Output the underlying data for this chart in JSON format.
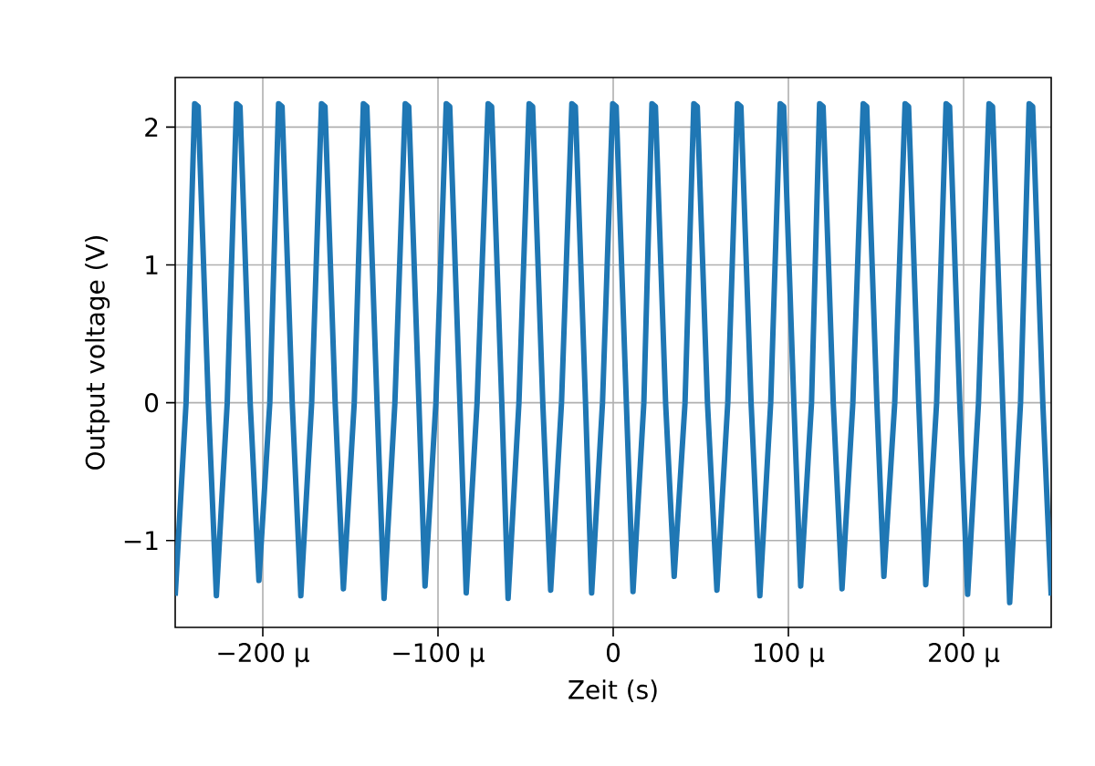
{
  "chart_data": {
    "type": "line",
    "xlabel": "Zeit (s)",
    "ylabel": "Output voltage (V)",
    "xlim": [
      -250,
      250
    ],
    "ylim": [
      -1.63,
      2.36
    ],
    "xticks": [
      {
        "value": -200,
        "label": "−200 µ"
      },
      {
        "value": -100,
        "label": "−100 µ"
      },
      0,
      {
        "value": 100,
        "label": "100 µ"
      },
      {
        "value": 200,
        "label": "200 µ"
      }
    ],
    "yticks": [
      {
        "value": -1,
        "label": "−1"
      },
      0,
      1,
      2
    ],
    "grid": true,
    "series": [
      {
        "color": "#1f77b4",
        "x": [
          -250,
          -243.8,
          -238.9,
          -236.9,
          -231.1,
          -226.5,
          -220.3,
          -215.0,
          -213.0,
          -207.2,
          -202.2,
          -196.0,
          -191.0,
          -189.0,
          -183.2,
          -178.3,
          -172.1,
          -166.5,
          -164.5,
          -158.7,
          -154.0,
          -147.8,
          -142.6,
          -140.6,
          -134.8,
          -130.8,
          -124.6,
          -118.7,
          -116.7,
          -110.9,
          -107.4,
          -101.2,
          -95.3,
          -93.3,
          -87.5,
          -83.9,
          -77.7,
          -71.4,
          -69.4,
          -63.6,
          -60.0,
          -53.8,
          -48.0,
          -46.0,
          -40.2,
          -35.7,
          -29.5,
          -23.6,
          -21.6,
          -15.8,
          -12.3,
          -6.1,
          -0.3,
          1.7,
          7.5,
          11.3,
          17.5,
          22.1,
          24.1,
          29.9,
          34.8,
          41.0,
          46.0,
          48.0,
          53.8,
          59.2,
          65.4,
          70.9,
          72.9,
          78.7,
          83.7,
          89.9,
          95.3,
          97.3,
          103.1,
          107.0,
          113.2,
          117.8,
          119.8,
          125.6,
          130.6,
          136.8,
          142.7,
          144.7,
          150.5,
          154.5,
          160.7,
          166.6,
          168.6,
          174.4,
          178.4,
          184.6,
          190.0,
          192.0,
          197.8,
          202.3,
          208.5,
          214.5,
          216.5,
          222.3,
          226.3,
          232.5,
          237.4,
          239.4,
          245.2,
          250
        ],
        "values": [
          -1.4,
          0,
          2.17,
          2.15,
          0,
          -1.4,
          0,
          2.17,
          2.15,
          0,
          -1.29,
          0,
          2.17,
          2.15,
          0,
          -1.4,
          0,
          2.17,
          2.15,
          0,
          -1.35,
          0,
          2.17,
          2.15,
          0,
          -1.42,
          0,
          2.17,
          2.15,
          0,
          -1.33,
          0,
          2.17,
          2.15,
          0,
          -1.38,
          0,
          2.17,
          2.15,
          0,
          -1.42,
          0,
          2.17,
          2.15,
          0,
          -1.36,
          0,
          2.17,
          2.15,
          0,
          -1.38,
          0,
          2.17,
          2.15,
          0,
          -1.37,
          0,
          2.17,
          2.15,
          0,
          -1.26,
          0,
          2.17,
          2.15,
          0,
          -1.36,
          0,
          2.17,
          2.15,
          0,
          -1.4,
          0,
          2.17,
          2.15,
          0,
          -1.33,
          0,
          2.17,
          2.15,
          0,
          -1.35,
          0,
          2.17,
          2.15,
          0,
          -1.26,
          0,
          2.17,
          2.15,
          0,
          -1.32,
          0,
          2.17,
          2.15,
          0,
          -1.39,
          0,
          2.17,
          2.15,
          0,
          -1.45,
          0,
          2.17,
          2.15,
          0,
          -1.4
        ]
      }
    ]
  }
}
